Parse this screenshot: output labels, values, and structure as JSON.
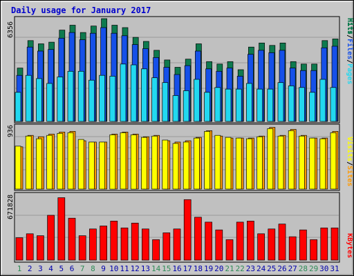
{
  "title": "Daily usage for January 2017",
  "colors": {
    "frame": "#c8c8c8",
    "plot_bg": "#c0c0c0",
    "title": "#0000cc",
    "hits": "#0e7a4e",
    "files": "#1550e8",
    "pages": "#22d8f0",
    "visits": "#ffff00",
    "sites": "#ff9a00",
    "kbytes": "#ff0000",
    "weekend_label": "#2e8b57",
    "weekday_label": "#0000aa"
  },
  "legends": {
    "panel1": [
      "Pages",
      "/",
      "Files",
      "/",
      "Hits"
    ],
    "panel2": [
      "Sites",
      "/",
      "Visits"
    ],
    "panel3": [
      "KBytes"
    ]
  },
  "chart_data": {
    "type": "bar",
    "title": "Daily usage for January 2017",
    "categories": [
      "1",
      "2",
      "3",
      "4",
      "5",
      "6",
      "7",
      "8",
      "9",
      "10",
      "11",
      "12",
      "13",
      "14",
      "15",
      "16",
      "17",
      "18",
      "19",
      "20",
      "21",
      "22",
      "23",
      "24",
      "25",
      "26",
      "27",
      "28",
      "29",
      "30",
      "31"
    ],
    "weekend_days": [
      "1",
      "7",
      "8",
      "14",
      "15",
      "21",
      "22",
      "28",
      "29"
    ],
    "panels": [
      {
        "id": "hits_files_pages",
        "ymax_label": "6356",
        "ylim": [
          0,
          6356
        ],
        "series": [
          {
            "name": "Hits",
            "color": "#0e7a4e",
            "values": [
              3300,
              5000,
              4800,
              4900,
              5650,
              5950,
              5500,
              5900,
              6356,
              5950,
              5800,
              5200,
              4950,
              4400,
              3800,
              3350,
              3850,
              4800,
              3700,
              3550,
              3700,
              3200,
              4600,
              4850,
              4700,
              4850,
              3700,
              3550,
              3550,
              5000,
              5100
            ]
          },
          {
            "name": "Files",
            "color": "#1550e8",
            "values": [
              2850,
              4600,
              4350,
              4450,
              5150,
              5500,
              5050,
              5450,
              5800,
              5450,
              5300,
              4750,
              4500,
              3950,
              3350,
              2900,
              3450,
              4350,
              3250,
              3100,
              3300,
              2800,
              4150,
              4400,
              4250,
              4400,
              3300,
              3150,
              3150,
              4550,
              4650
            ]
          },
          {
            "name": "Pages",
            "color": "#22d8f0",
            "values": [
              1800,
              2850,
              2650,
              2350,
              2750,
              3100,
              3100,
              2550,
              2850,
              2800,
              3550,
              3500,
              3250,
              2700,
              2400,
              1600,
              1900,
              2600,
              1800,
              2100,
              2000,
              2000,
              2350,
              2000,
              2000,
              2400,
              2200,
              2100,
              1800,
              2600,
              2100
            ]
          }
        ]
      },
      {
        "id": "sites_visits",
        "ymax_label": "936",
        "ylim": [
          0,
          936
        ],
        "series": [
          {
            "name": "Sites",
            "color": "#ff9a00",
            "values": [
              630,
              800,
              780,
              820,
              850,
              860,
              720,
              700,
              700,
              820,
              850,
              820,
              780,
              800,
              720,
              700,
              720,
              770,
              870,
              790,
              760,
              760,
              760,
              790,
              920,
              800,
              890,
              800,
              760,
              760,
              860
            ]
          },
          {
            "name": "Visits",
            "color": "#ffff00",
            "values": [
              640,
              790,
              750,
              800,
              830,
              840,
              740,
              700,
              700,
              810,
              840,
              810,
              770,
              790,
              730,
              680,
              700,
              760,
              860,
              800,
              770,
              760,
              750,
              780,
              900,
              790,
              870,
              790,
              760,
              750,
              840
            ]
          }
        ]
      },
      {
        "id": "kbytes",
        "ymax_label": "671828",
        "ylim": [
          0,
          671828
        ],
        "series": [
          {
            "name": "KBytes",
            "color": "#ff0000",
            "values": [
              230000,
              270000,
              250000,
              460000,
              640000,
              430000,
              250000,
              320000,
              350000,
              400000,
              330000,
              380000,
              320000,
              210000,
              280000,
              320000,
              620000,
              440000,
              390000,
              310000,
              210000,
              390000,
              400000,
              270000,
              320000,
              370000,
              240000,
              310000,
              210000,
              330000,
              330000
            ]
          }
        ]
      }
    ]
  }
}
